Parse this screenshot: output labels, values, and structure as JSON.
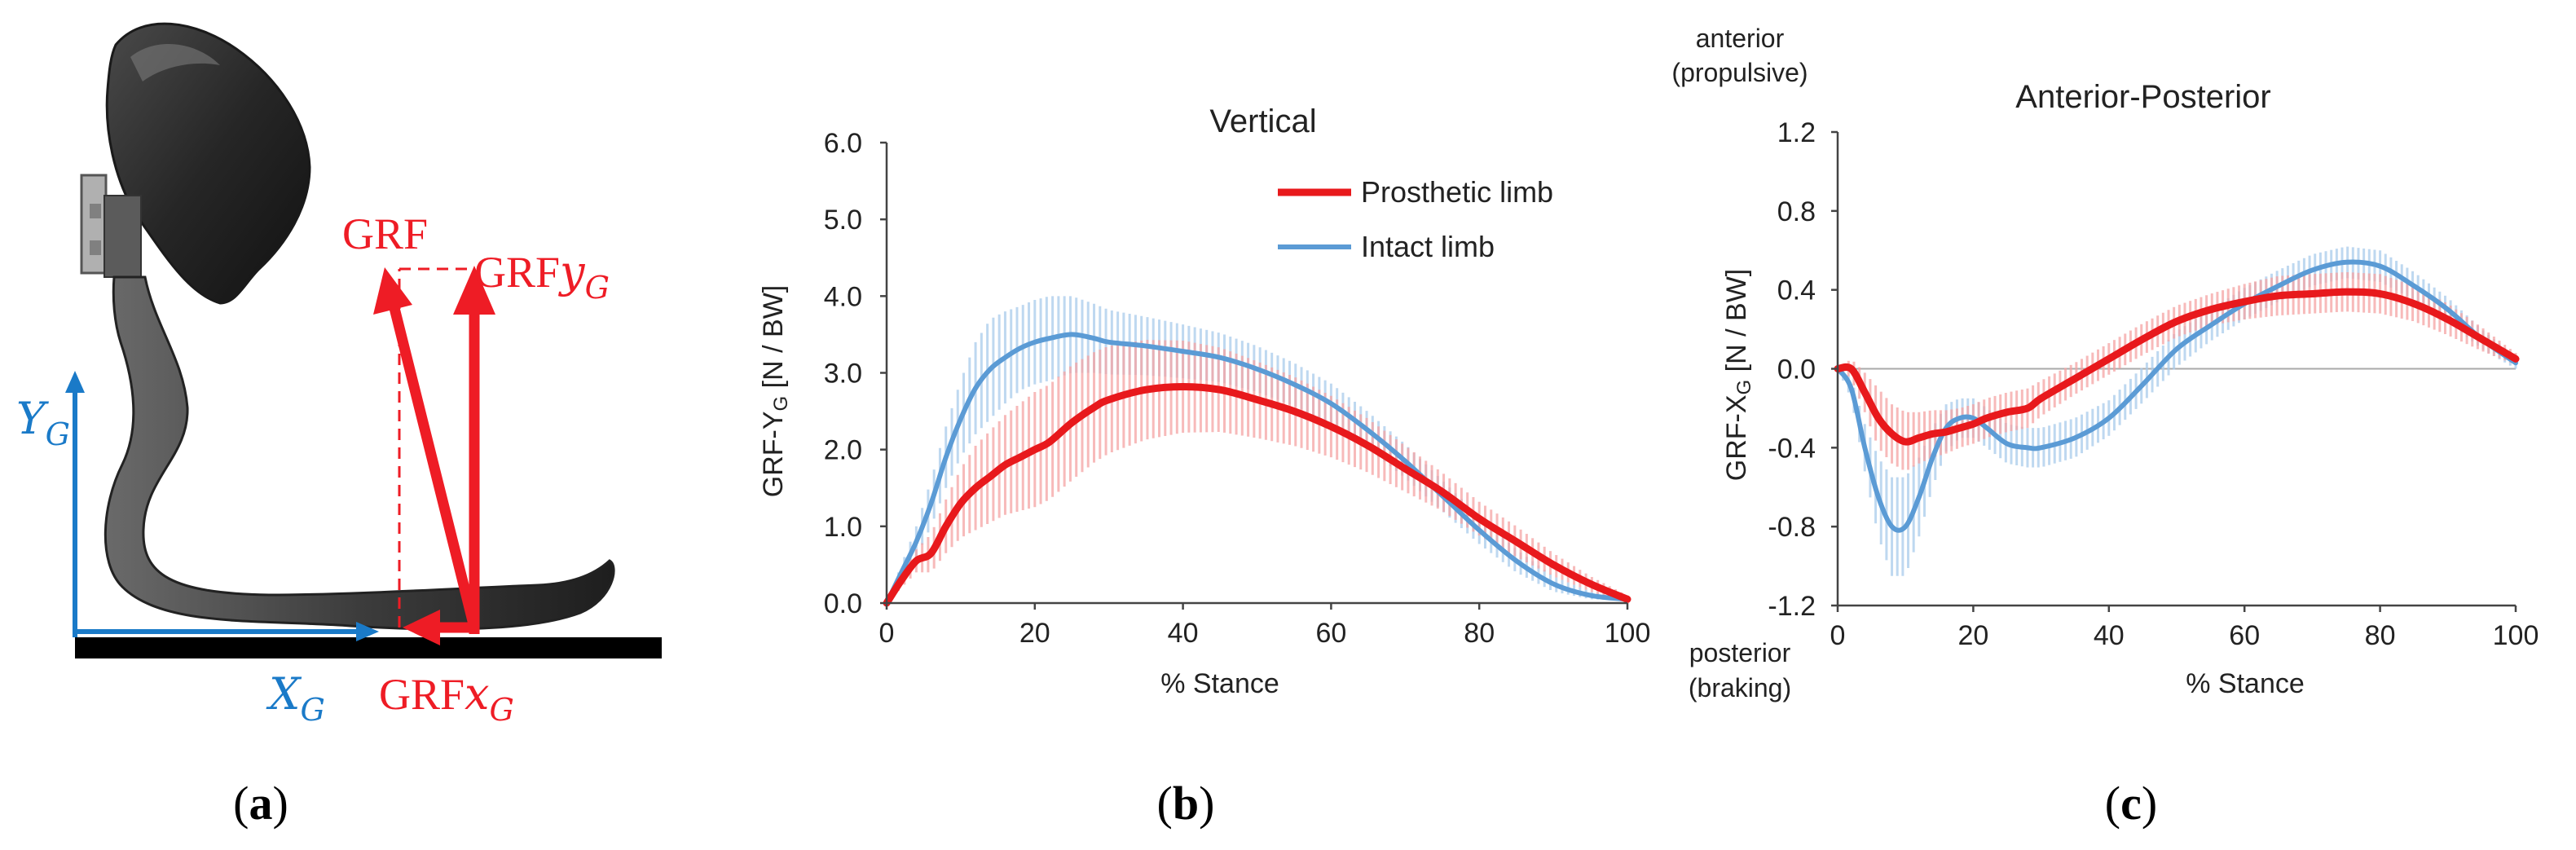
{
  "panels": {
    "a": {
      "label_open": "(",
      "label_letter": "a",
      "label_close": ")"
    },
    "b": {
      "label_open": "(",
      "label_letter": "b",
      "label_close": ")"
    },
    "c": {
      "label_open": "(",
      "label_letter": "c",
      "label_close": ")"
    }
  },
  "diagram": {
    "y_axis_label": "Y",
    "x_axis_label": "X",
    "axis_subscript": "G",
    "grf_label": "GRF",
    "grf_y_label": "GRF",
    "grf_y_italic": "y",
    "grf_x_label": "GRF",
    "grf_x_italic": "x",
    "grf_sub": "G"
  },
  "colors": {
    "prosthetic": "#e8191c",
    "intact": "#5b9bd5",
    "prosthetic_band": "#f5a3a3",
    "intact_band": "#a9cbeb",
    "diagram_red": "#ee1c25",
    "diagram_blue": "#1a7ac8"
  },
  "chart_data": [
    {
      "type": "line",
      "title": "Vertical",
      "xlabel": "% Stance",
      "ylabel_main": "GRF-Y",
      "ylabel_sub": "G",
      "ylabel_unit": " [N / BW]",
      "xlim": [
        0,
        100
      ],
      "ylim": [
        0,
        6
      ],
      "xticks": [
        "0",
        "20",
        "40",
        "60",
        "80",
        "100"
      ],
      "yticks": [
        "0.0",
        "1.0",
        "2.0",
        "3.0",
        "4.0",
        "5.0",
        "6.0"
      ],
      "legend": [
        "Prosthetic limb",
        "Intact limb"
      ],
      "x": [
        0,
        2,
        4,
        6,
        8,
        10,
        12,
        14,
        16,
        18,
        20,
        22,
        25,
        28,
        30,
        35,
        40,
        45,
        50,
        55,
        60,
        65,
        70,
        75,
        80,
        85,
        90,
        95,
        100
      ],
      "series": [
        {
          "name": "Prosthetic limb",
          "values": [
            0,
            0.3,
            0.55,
            0.65,
            1.0,
            1.3,
            1.5,
            1.65,
            1.8,
            1.9,
            2.0,
            2.1,
            2.35,
            2.55,
            2.65,
            2.78,
            2.82,
            2.78,
            2.65,
            2.5,
            2.3,
            2.05,
            1.75,
            1.45,
            1.1,
            0.8,
            0.5,
            0.25,
            0.05
          ],
          "sd": [
            0,
            0.1,
            0.15,
            0.25,
            0.35,
            0.45,
            0.55,
            0.6,
            0.65,
            0.7,
            0.75,
            0.75,
            0.75,
            0.72,
            0.7,
            0.65,
            0.6,
            0.55,
            0.5,
            0.45,
            0.4,
            0.35,
            0.3,
            0.25,
            0.22,
            0.2,
            0.15,
            0.1,
            0.05
          ]
        },
        {
          "name": "Intact limb",
          "values": [
            0,
            0.4,
            0.8,
            1.3,
            1.9,
            2.4,
            2.8,
            3.05,
            3.2,
            3.32,
            3.4,
            3.45,
            3.5,
            3.45,
            3.4,
            3.35,
            3.28,
            3.2,
            3.05,
            2.85,
            2.6,
            2.25,
            1.85,
            1.4,
            0.95,
            0.55,
            0.25,
            0.1,
            0.05
          ],
          "sd": [
            0,
            0.1,
            0.2,
            0.3,
            0.4,
            0.5,
            0.6,
            0.65,
            0.6,
            0.55,
            0.55,
            0.55,
            0.5,
            0.45,
            0.42,
            0.38,
            0.35,
            0.32,
            0.3,
            0.28,
            0.26,
            0.24,
            0.22,
            0.2,
            0.18,
            0.15,
            0.1,
            0.05,
            0.02
          ]
        }
      ]
    },
    {
      "type": "line",
      "title": "Anterior-Posterior",
      "xlabel": "% Stance",
      "ylabel_main": "GRF-X",
      "ylabel_sub": "G",
      "ylabel_unit": " [N / BW]",
      "xlim": [
        0,
        100
      ],
      "ylim": [
        -1.2,
        1.2
      ],
      "xticks": [
        "0",
        "20",
        "40",
        "60",
        "80",
        "100"
      ],
      "yticks": [
        "-1.2",
        "-0.8",
        "-0.4",
        "0.0",
        "0.4",
        "0.8",
        "1.2"
      ],
      "annotation_top": [
        "anterior",
        "(propulsive)"
      ],
      "annotation_bottom": [
        "posterior",
        "(braking)"
      ],
      "x": [
        0,
        2,
        4,
        6,
        8,
        10,
        12,
        14,
        16,
        18,
        20,
        22,
        25,
        28,
        30,
        35,
        40,
        45,
        50,
        55,
        60,
        65,
        70,
        75,
        80,
        85,
        90,
        95,
        100
      ],
      "series": [
        {
          "name": "Prosthetic limb",
          "values": [
            0,
            0,
            -0.12,
            -0.25,
            -0.33,
            -0.37,
            -0.35,
            -0.33,
            -0.32,
            -0.3,
            -0.28,
            -0.25,
            -0.22,
            -0.2,
            -0.15,
            -0.05,
            0.05,
            0.15,
            0.24,
            0.3,
            0.34,
            0.37,
            0.38,
            0.39,
            0.38,
            0.33,
            0.25,
            0.15,
            0.05
          ],
          "sd": [
            0,
            0.05,
            0.1,
            0.15,
            0.15,
            0.15,
            0.13,
            0.12,
            0.11,
            0.1,
            0.1,
            0.1,
            0.1,
            0.1,
            0.09,
            0.08,
            0.08,
            0.08,
            0.08,
            0.08,
            0.09,
            0.1,
            0.1,
            0.1,
            0.1,
            0.09,
            0.08,
            0.06,
            0.03
          ]
        },
        {
          "name": "Intact limb",
          "values": [
            0,
            -0.1,
            -0.4,
            -0.65,
            -0.8,
            -0.8,
            -0.65,
            -0.45,
            -0.3,
            -0.25,
            -0.25,
            -0.3,
            -0.38,
            -0.4,
            -0.4,
            -0.35,
            -0.25,
            -0.08,
            0.1,
            0.22,
            0.33,
            0.42,
            0.5,
            0.54,
            0.52,
            0.42,
            0.3,
            0.15,
            0.03
          ],
          "sd": [
            0,
            0.05,
            0.12,
            0.2,
            0.25,
            0.25,
            0.2,
            0.15,
            0.12,
            0.1,
            0.1,
            0.1,
            0.1,
            0.1,
            0.1,
            0.1,
            0.09,
            0.09,
            0.09,
            0.08,
            0.08,
            0.08,
            0.08,
            0.08,
            0.08,
            0.07,
            0.06,
            0.05,
            0.03
          ]
        }
      ]
    }
  ]
}
